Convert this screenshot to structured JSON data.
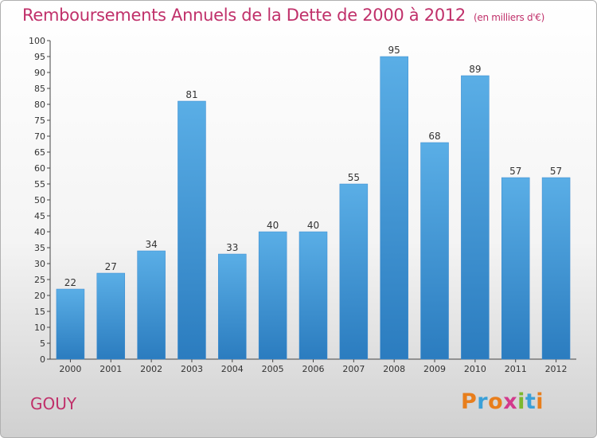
{
  "header": {
    "title": "Remboursements Annuels de la Dette de 2000 à 2012",
    "unit": "(en milliers d'€)"
  },
  "footer": {
    "commune": "GOUY",
    "logo": {
      "text": "Proxiti",
      "letters": [
        "P",
        "r",
        "o",
        "x",
        "i",
        "t",
        "i"
      ],
      "colors": [
        "#e87e1c",
        "#3aa0d8",
        "#e87e1c",
        "#d23a8c",
        "#7cb82f",
        "#3aa0d8",
        "#e87e1c"
      ]
    }
  },
  "colors": {
    "bar_top": "#5aaee6",
    "bar_bottom": "#2b7cbf",
    "title": "#c0306a"
  },
  "chart_data": {
    "type": "bar",
    "categories": [
      "2000",
      "2001",
      "2002",
      "2003",
      "2004",
      "2005",
      "2006",
      "2007",
      "2008",
      "2009",
      "2010",
      "2011",
      "2012"
    ],
    "values": [
      22,
      27,
      34,
      81,
      33,
      40,
      40,
      55,
      95,
      68,
      89,
      57,
      57
    ],
    "yticks": [
      "0",
      "5",
      "10",
      "15",
      "20",
      "25",
      "30",
      "35",
      "40",
      "45",
      "50",
      "55",
      "60",
      "65",
      "70",
      "75",
      "80",
      "85",
      "90",
      "95",
      "100"
    ],
    "ylim": [
      0,
      100
    ],
    "ytick_step": 5,
    "grid": false,
    "legend": "none"
  }
}
